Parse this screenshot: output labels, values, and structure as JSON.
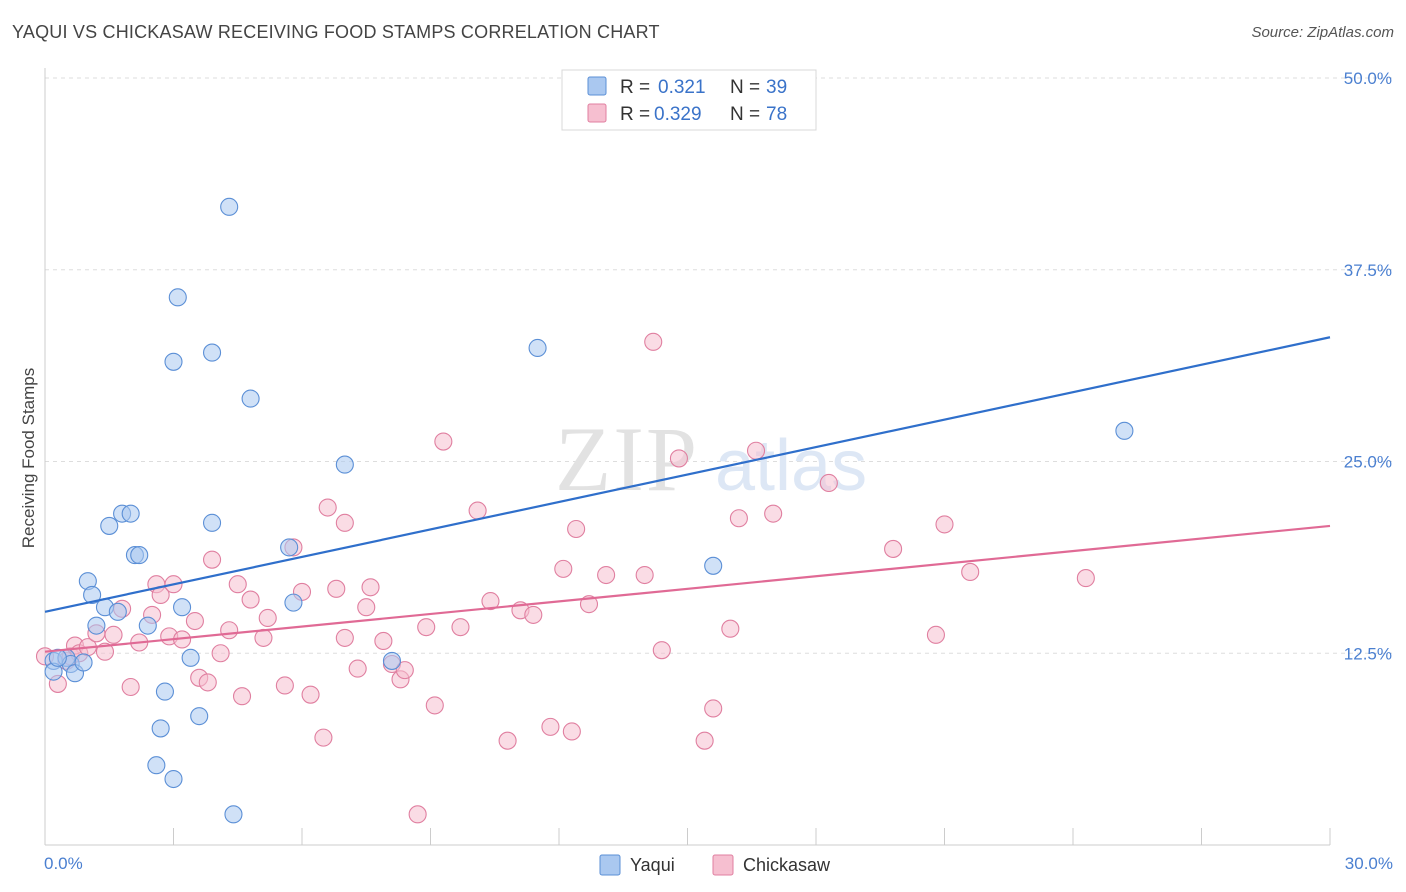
{
  "header": {
    "title": "YAQUI VS CHICKASAW RECEIVING FOOD STAMPS CORRELATION CHART",
    "source": "Source: ZipAtlas.com"
  },
  "watermark": {
    "zip": "ZIP",
    "atlas": "atlas"
  },
  "legend_box": {
    "r_label": "R =",
    "n_label": "N =",
    "rows": [
      {
        "r": "0.321",
        "n": "39"
      },
      {
        "r": "0.329",
        "n": "78"
      }
    ]
  },
  "colors": {
    "yaqui_fill": "#aac8f0",
    "yaqui_stroke": "#5b8fd6",
    "yaqui_line": "#2f6fcb",
    "chickasaw_fill": "#f6bfd0",
    "chickasaw_stroke": "#e07fa0",
    "chickasaw_line": "#e06a95",
    "grid": "#dddddd",
    "tick_text": "#4a7fd0"
  },
  "chart_data": {
    "type": "scatter",
    "title": "YAQUI VS CHICKASAW RECEIVING FOOD STAMPS CORRELATION CHART",
    "xlabel": "",
    "ylabel": "Receiving Food Stamps",
    "xlim": [
      0,
      30
    ],
    "ylim": [
      0,
      50
    ],
    "x_tick_labels": [
      "0.0%",
      "30.0%"
    ],
    "y_ticks": [
      12.5,
      25.0,
      37.5,
      50.0
    ],
    "y_tick_labels": [
      "12.5%",
      "25.0%",
      "37.5%",
      "50.0%"
    ],
    "grid": true,
    "legend_position": "top-center",
    "series": [
      {
        "name": "Yaqui",
        "r": 0.321,
        "n": 39,
        "trend": {
          "x": [
            0,
            30
          ],
          "y": [
            15.2,
            33.1
          ]
        },
        "points": [
          [
            0.2,
            12.0
          ],
          [
            0.2,
            11.3
          ],
          [
            0.5,
            12.2
          ],
          [
            0.6,
            11.8
          ],
          [
            0.7,
            11.2
          ],
          [
            0.9,
            11.9
          ],
          [
            1.0,
            17.2
          ],
          [
            1.1,
            16.3
          ],
          [
            1.2,
            14.3
          ],
          [
            1.4,
            15.5
          ],
          [
            1.5,
            20.8
          ],
          [
            1.7,
            15.2
          ],
          [
            1.8,
            21.6
          ],
          [
            2.0,
            21.6
          ],
          [
            2.1,
            18.9
          ],
          [
            2.2,
            18.9
          ],
          [
            2.4,
            14.3
          ],
          [
            2.6,
            5.2
          ],
          [
            2.7,
            7.6
          ],
          [
            2.8,
            10.0
          ],
          [
            3.0,
            31.5
          ],
          [
            3.0,
            4.3
          ],
          [
            3.1,
            35.7
          ],
          [
            3.2,
            15.5
          ],
          [
            3.4,
            12.2
          ],
          [
            3.6,
            8.4
          ],
          [
            3.9,
            21.0
          ],
          [
            3.9,
            32.1
          ],
          [
            4.3,
            41.6
          ],
          [
            4.4,
            2.0
          ],
          [
            4.8,
            29.1
          ],
          [
            5.7,
            19.4
          ],
          [
            5.8,
            15.8
          ],
          [
            7.0,
            24.8
          ],
          [
            8.1,
            12.0
          ],
          [
            11.5,
            32.4
          ],
          [
            15.6,
            18.2
          ],
          [
            25.2,
            27.0
          ],
          [
            0.3,
            12.2
          ]
        ]
      },
      {
        "name": "Chickasaw",
        "r": 0.329,
        "n": 78,
        "trend": {
          "x": [
            0,
            30
          ],
          "y": [
            12.6,
            20.8
          ]
        },
        "points": [
          [
            0.0,
            12.3
          ],
          [
            0.3,
            10.5
          ],
          [
            0.5,
            12.0
          ],
          [
            0.6,
            12.3
          ],
          [
            0.7,
            13.0
          ],
          [
            0.8,
            12.5
          ],
          [
            1.0,
            12.9
          ],
          [
            1.2,
            13.8
          ],
          [
            1.4,
            12.6
          ],
          [
            1.6,
            13.7
          ],
          [
            1.8,
            15.4
          ],
          [
            2.0,
            10.3
          ],
          [
            2.2,
            13.2
          ],
          [
            2.5,
            15.0
          ],
          [
            2.6,
            17.0
          ],
          [
            2.7,
            16.3
          ],
          [
            2.9,
            13.6
          ],
          [
            3.0,
            17.0
          ],
          [
            3.2,
            13.4
          ],
          [
            3.5,
            14.6
          ],
          [
            3.6,
            10.9
          ],
          [
            3.8,
            10.6
          ],
          [
            3.9,
            18.6
          ],
          [
            4.1,
            12.5
          ],
          [
            4.3,
            14.0
          ],
          [
            4.5,
            17.0
          ],
          [
            4.6,
            9.7
          ],
          [
            4.8,
            16.0
          ],
          [
            5.1,
            13.5
          ],
          [
            5.2,
            14.8
          ],
          [
            5.6,
            10.4
          ],
          [
            5.8,
            19.4
          ],
          [
            6.0,
            16.5
          ],
          [
            6.2,
            9.8
          ],
          [
            6.5,
            7.0
          ],
          [
            6.8,
            16.7
          ],
          [
            6.6,
            22.0
          ],
          [
            7.0,
            13.5
          ],
          [
            7.0,
            21.0
          ],
          [
            7.3,
            11.5
          ],
          [
            7.5,
            15.5
          ],
          [
            7.6,
            16.8
          ],
          [
            7.9,
            13.3
          ],
          [
            8.1,
            11.8
          ],
          [
            8.3,
            10.8
          ],
          [
            8.4,
            11.4
          ],
          [
            8.7,
            2.0
          ],
          [
            8.9,
            14.2
          ],
          [
            9.1,
            9.1
          ],
          [
            9.3,
            26.3
          ],
          [
            9.7,
            14.2
          ],
          [
            10.1,
            21.8
          ],
          [
            10.4,
            15.9
          ],
          [
            10.8,
            6.8
          ],
          [
            11.1,
            15.3
          ],
          [
            11.4,
            15.0
          ],
          [
            11.8,
            7.7
          ],
          [
            12.1,
            18.0
          ],
          [
            12.3,
            7.4
          ],
          [
            12.4,
            20.6
          ],
          [
            12.7,
            15.7
          ],
          [
            13.1,
            17.6
          ],
          [
            14.0,
            17.6
          ],
          [
            14.2,
            32.8
          ],
          [
            14.4,
            12.7
          ],
          [
            14.8,
            25.2
          ],
          [
            15.4,
            6.8
          ],
          [
            15.6,
            8.9
          ],
          [
            16.0,
            14.1
          ],
          [
            16.2,
            21.3
          ],
          [
            16.6,
            25.7
          ],
          [
            17.0,
            21.6
          ],
          [
            18.3,
            23.6
          ],
          [
            19.8,
            19.3
          ],
          [
            20.8,
            13.7
          ],
          [
            21.0,
            20.9
          ],
          [
            21.6,
            17.8
          ],
          [
            24.3,
            17.4
          ]
        ]
      }
    ]
  },
  "bottom_legend": {
    "items": [
      {
        "label": "Yaqui"
      },
      {
        "label": "Chickasaw"
      }
    ]
  }
}
